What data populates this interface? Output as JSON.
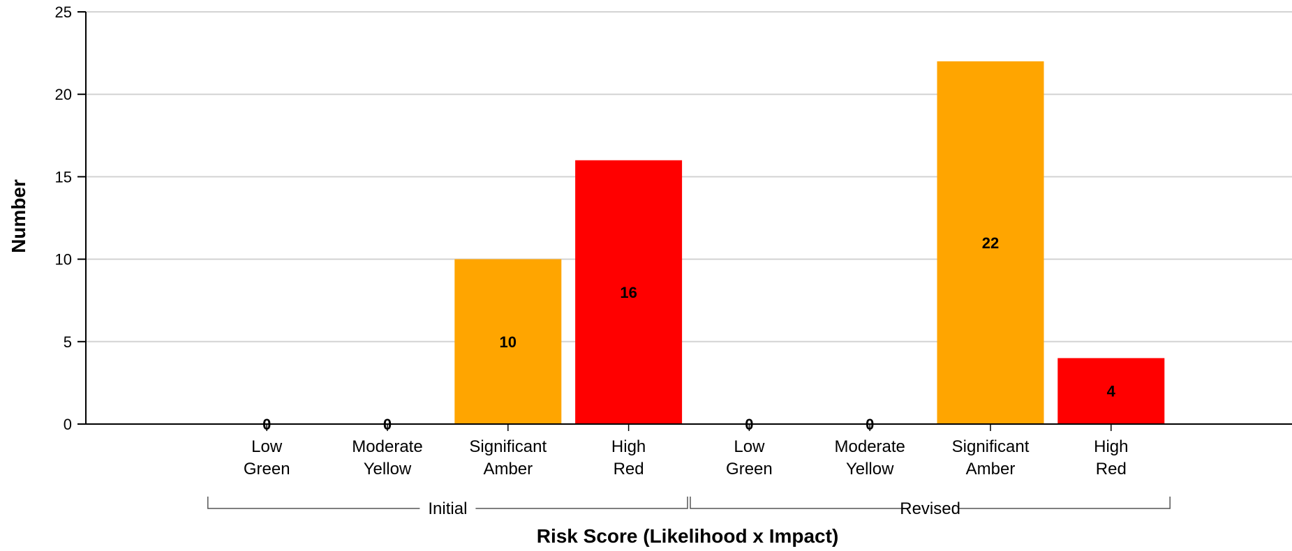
{
  "chart_data": {
    "type": "bar",
    "ylabel": "Number",
    "xlabel": "Risk Score (Likelihood x Impact)",
    "ylim": [
      0,
      25
    ],
    "yticks": [
      0,
      5,
      10,
      15,
      20,
      25
    ],
    "grid": true,
    "groups": [
      {
        "name": "Initial",
        "categories": [
          {
            "line1": "Low",
            "line2": "Green",
            "value": 0,
            "color": "#ffffff"
          },
          {
            "line1": "Moderate",
            "line2": "Yellow",
            "value": 0,
            "color": "#ffff00"
          },
          {
            "line1": "Significant",
            "line2": "Amber",
            "value": 10,
            "color": "#ffa500"
          },
          {
            "line1": "High",
            "line2": "Red",
            "value": 16,
            "color": "#ff0000"
          }
        ]
      },
      {
        "name": "Revised",
        "categories": [
          {
            "line1": "Low",
            "line2": "Green",
            "value": 0,
            "color": "#ffffff"
          },
          {
            "line1": "Moderate",
            "line2": "Yellow",
            "value": 0,
            "color": "#ffff00"
          },
          {
            "line1": "Significant",
            "line2": "Amber",
            "value": 22,
            "color": "#ffa500"
          },
          {
            "line1": "High",
            "line2": "Red",
            "value": 4,
            "color": "#ff0000"
          }
        ]
      }
    ]
  }
}
